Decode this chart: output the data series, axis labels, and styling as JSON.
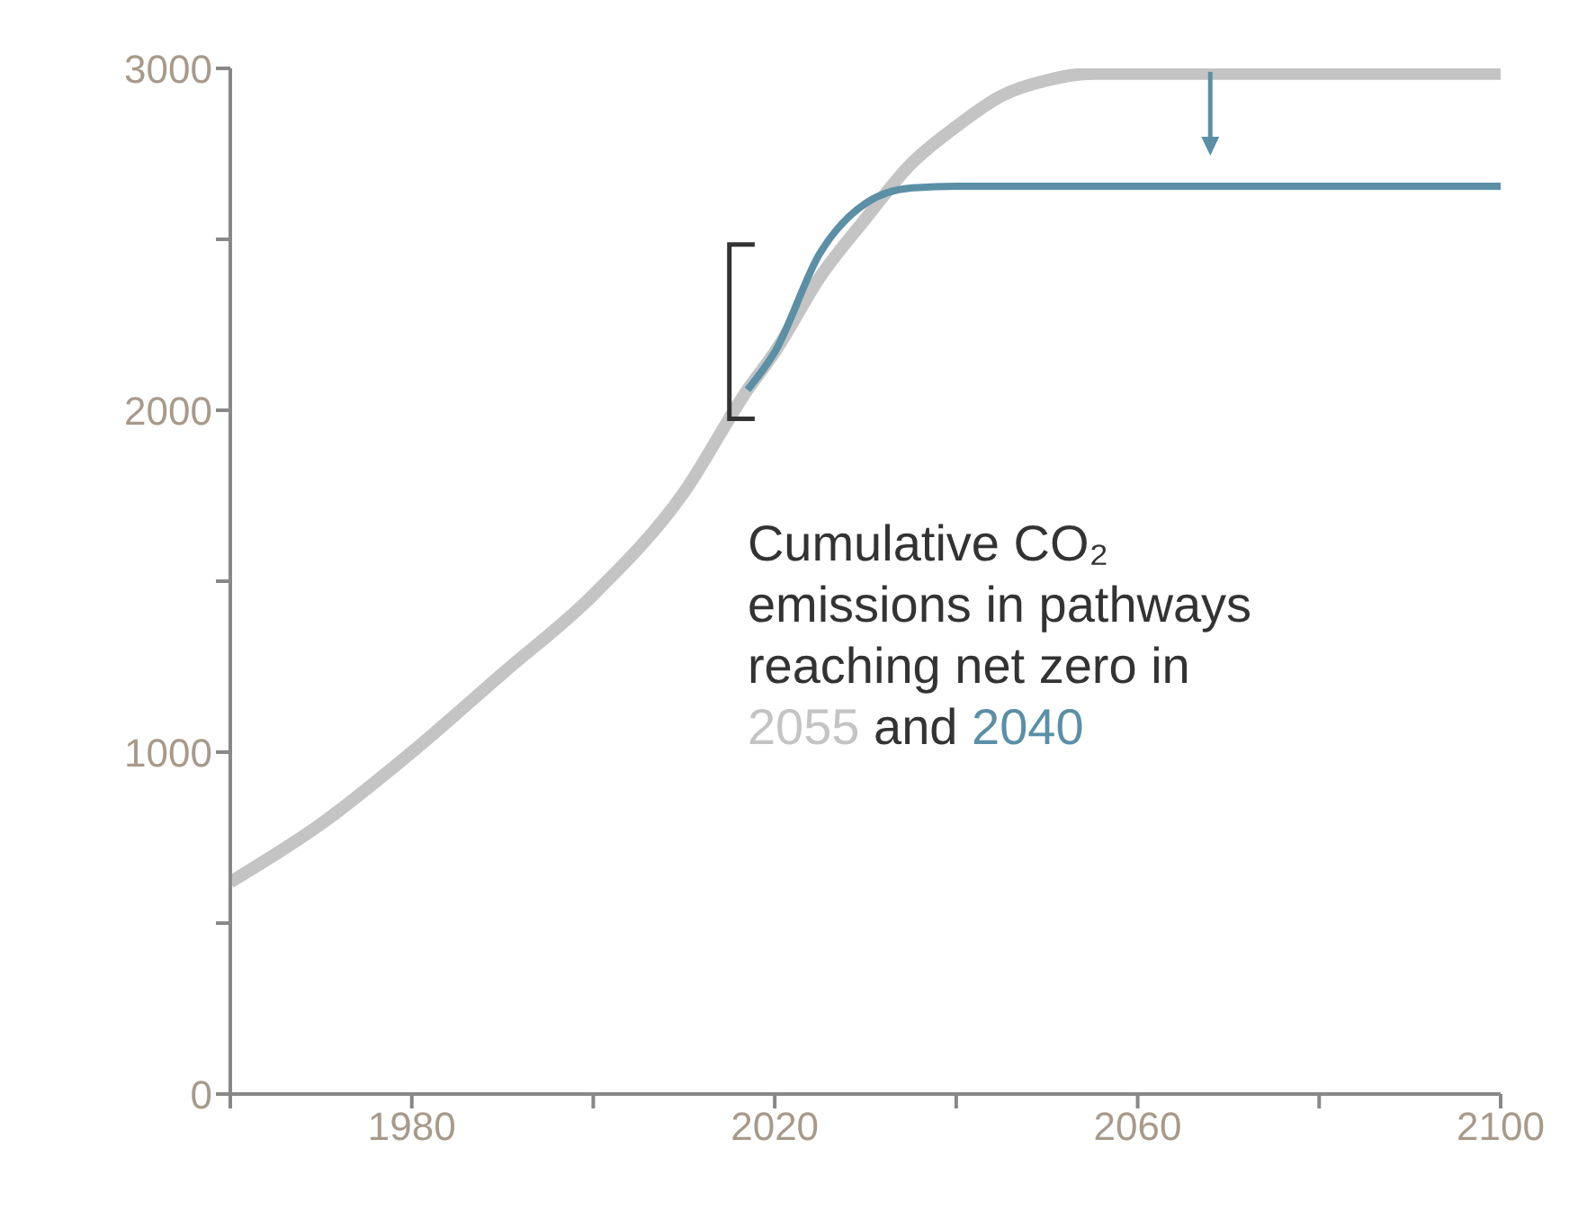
{
  "chart_data": {
    "type": "line",
    "xlim": [
      1960,
      2100
    ],
    "xticks": [
      {
        "value": 1960,
        "label": null
      },
      1980,
      {
        "value": 2000,
        "label": null
      },
      2020,
      {
        "value": 2040,
        "label": null
      },
      2060,
      {
        "value": 2080,
        "label": null
      },
      2100
    ],
    "ylim": [
      0,
      3000
    ],
    "yticks": [
      0,
      {
        "value": 500,
        "label": null
      },
      1000,
      {
        "value": 1500,
        "label": null
      },
      2000,
      {
        "value": 2500,
        "label": null
      },
      3000
    ],
    "marker": "none",
    "line_style": "solid",
    "series": [
      {
        "name": "2055",
        "color": "#c4c4c4",
        "x": [
          1960,
          1970,
          1980,
          1990,
          2000,
          2010,
          2017,
          2020,
          2025,
          2030,
          2035,
          2040,
          2045,
          2050,
          2055,
          2060,
          2080,
          2100
        ],
        "values": [
          620,
          790,
          1000,
          1230,
          1460,
          1760,
          2060,
          2170,
          2390,
          2560,
          2720,
          2830,
          2920,
          2965,
          2985,
          2985,
          2985,
          2985
        ]
      },
      {
        "name": "2040",
        "color": "#5b8fa6",
        "x": [
          2017,
          2020,
          2025,
          2030,
          2035,
          2040,
          2060,
          2080,
          2100
        ],
        "values": [
          2060,
          2170,
          2460,
          2605,
          2650,
          2655,
          2655,
          2655,
          2655
        ]
      }
    ],
    "annotations": [
      "Cumulative CO₂ emissions in pathways reaching net zero in",
      "and"
    ]
  }
}
